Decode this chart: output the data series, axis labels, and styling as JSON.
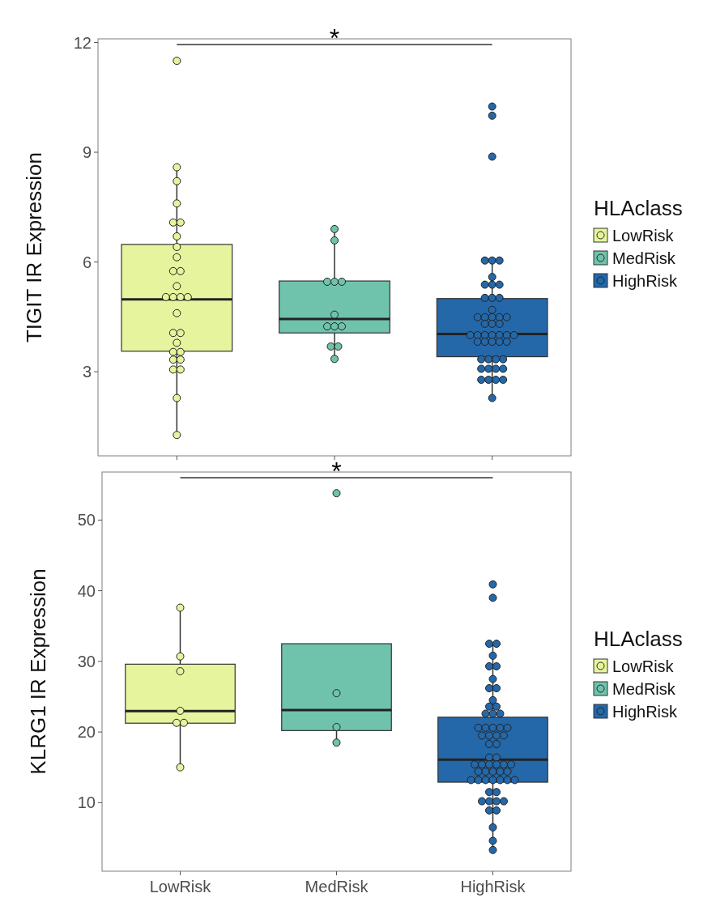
{
  "chart_data": [
    {
      "type": "box",
      "ylabel": "TIGIT IR Expression",
      "legend_title": "HLAclass",
      "categories": [
        "LowRisk",
        "MedRisk",
        "HighRisk"
      ],
      "colors": [
        "#e6f59d",
        "#6fc3ad",
        "#2468a9"
      ],
      "ylim": [
        0.7,
        12.1
      ],
      "yticks": [
        3,
        6,
        9,
        12
      ],
      "tick_labels": "y",
      "legend": "right",
      "annotations": [
        "*"
      ],
      "boxes": [
        {
          "low": 1.27,
          "q1": 3.56,
          "median": 4.98,
          "q3": 6.48,
          "high": 8.59
        },
        {
          "low": 3.35,
          "q1": 4.06,
          "median": 4.44,
          "q3": 5.48,
          "high": 6.9
        },
        {
          "low": 2.28,
          "q1": 3.41,
          "median": 4.03,
          "q3": 5.0,
          "high": 6.04
        }
      ],
      "series": [
        {
          "type": "scatter",
          "name": "LowRisk",
          "color": "#e6f59d",
          "x": [
            "LowRisk",
            "LowRisk",
            "LowRisk",
            "LowRisk",
            "LowRisk",
            "LowRisk",
            "LowRisk",
            "LowRisk",
            "LowRisk",
            "LowRisk",
            "LowRisk",
            "LowRisk",
            "LowRisk",
            "LowRisk",
            "LowRisk",
            "LowRisk",
            "LowRisk",
            "LowRisk",
            "LowRisk",
            "LowRisk",
            "LowRisk",
            "LowRisk",
            "LowRisk",
            "LowRisk",
            "LowRisk",
            "LowRisk",
            "LowRisk",
            "LowRisk"
          ],
          "values": [
            11.5,
            8.59,
            8.21,
            7.6,
            7.08,
            7.08,
            6.7,
            6.41,
            6.13,
            5.75,
            5.75,
            5.34,
            5.04,
            5.04,
            5.04,
            5.04,
            4.6,
            4.06,
            4.06,
            3.79,
            3.54,
            3.54,
            3.33,
            3.33,
            3.06,
            3.06,
            2.28,
            1.27
          ]
        },
        {
          "type": "scatter",
          "name": "MedRisk",
          "color": "#6fc3ad",
          "x": [
            "MedRisk",
            "MedRisk",
            "MedRisk",
            "MedRisk",
            "MedRisk",
            "MedRisk",
            "MedRisk",
            "MedRisk",
            "MedRisk",
            "MedRisk",
            "MedRisk",
            "MedRisk"
          ],
          "values": [
            6.9,
            6.59,
            5.46,
            5.46,
            5.46,
            4.56,
            4.24,
            4.24,
            4.24,
            3.69,
            3.69,
            3.35
          ]
        },
        {
          "type": "scatter",
          "name": "HighRisk",
          "color": "#2468a9",
          "x": [
            "HighRisk",
            "HighRisk",
            "HighRisk",
            "HighRisk",
            "HighRisk",
            "HighRisk",
            "HighRisk",
            "HighRisk",
            "HighRisk",
            "HighRisk",
            "HighRisk",
            "HighRisk",
            "HighRisk",
            "HighRisk",
            "HighRisk",
            "HighRisk",
            "HighRisk",
            "HighRisk",
            "HighRisk",
            "HighRisk",
            "HighRisk",
            "HighRisk",
            "HighRisk",
            "HighRisk",
            "HighRisk",
            "HighRisk",
            "HighRisk",
            "HighRisk",
            "HighRisk",
            "HighRisk",
            "HighRisk",
            "HighRisk",
            "HighRisk",
            "HighRisk",
            "HighRisk",
            "HighRisk",
            "HighRisk",
            "HighRisk",
            "HighRisk",
            "HighRisk",
            "HighRisk",
            "HighRisk",
            "HighRisk",
            "HighRisk",
            "HighRisk",
            "HighRisk",
            "HighRisk"
          ],
          "values": [
            10.25,
            10.0,
            8.88,
            6.04,
            6.04,
            6.04,
            5.59,
            5.38,
            5.38,
            5.38,
            5.02,
            5.02,
            5.02,
            4.69,
            4.49,
            4.49,
            4.49,
            4.49,
            4.49,
            4.31,
            4.31,
            4.31,
            4.0,
            4.0,
            4.0,
            4.0,
            4.0,
            4.0,
            4.0,
            3.82,
            3.82,
            3.82,
            3.82,
            3.82,
            3.34,
            3.34,
            3.34,
            3.34,
            3.08,
            3.08,
            3.08,
            3.08,
            2.78,
            2.78,
            2.78,
            2.78,
            2.28
          ]
        }
      ]
    },
    {
      "type": "box",
      "ylabel": "KLRG1 IR Expression",
      "legend_title": "HLAclass",
      "categories": [
        "LowRisk",
        "MedRisk",
        "HighRisk"
      ],
      "colors": [
        "#e6f59d",
        "#6fc3ad",
        "#2468a9"
      ],
      "ylim": [
        0.3,
        56.8
      ],
      "yticks": [
        10,
        20,
        30,
        40,
        50
      ],
      "legend": "right",
      "annotations": [
        "*"
      ],
      "boxes": [
        {
          "low": 15.0,
          "q1": 21.25,
          "median": 22.95,
          "q3": 29.6,
          "high": 37.6
        },
        {
          "low": 18.5,
          "q1": 20.2,
          "median": 23.1,
          "q3": 32.5,
          "high": 32.5
        },
        {
          "low": 3.3,
          "q1": 12.9,
          "median": 16.1,
          "q3": 22.1,
          "high": 32.5
        }
      ],
      "series": [
        {
          "type": "scatter",
          "name": "LowRisk",
          "color": "#e6f59d",
          "x": [
            "LowRisk",
            "LowRisk",
            "LowRisk",
            "LowRisk",
            "LowRisk",
            "LowRisk",
            "LowRisk"
          ],
          "values": [
            37.6,
            30.7,
            28.6,
            23.0,
            21.3,
            21.3,
            15.0
          ]
        },
        {
          "type": "scatter",
          "name": "MedRisk",
          "color": "#6fc3ad",
          "x": [
            "MedRisk",
            "MedRisk",
            "MedRisk",
            "MedRisk"
          ],
          "values": [
            53.8,
            25.5,
            20.7,
            18.5
          ]
        },
        {
          "type": "scatter",
          "name": "HighRisk",
          "color": "#2468a9",
          "x": [
            "HighRisk",
            "HighRisk",
            "HighRisk",
            "HighRisk",
            "HighRisk",
            "HighRisk",
            "HighRisk",
            "HighRisk",
            "HighRisk",
            "HighRisk",
            "HighRisk",
            "HighRisk",
            "HighRisk",
            "HighRisk",
            "HighRisk",
            "HighRisk",
            "HighRisk",
            "HighRisk",
            "HighRisk",
            "HighRisk",
            "HighRisk",
            "HighRisk",
            "HighRisk",
            "HighRisk",
            "HighRisk",
            "HighRisk",
            "HighRisk",
            "HighRisk",
            "HighRisk",
            "HighRisk",
            "HighRisk",
            "HighRisk",
            "HighRisk",
            "HighRisk",
            "HighRisk",
            "HighRisk",
            "HighRisk",
            "HighRisk",
            "HighRisk",
            "HighRisk",
            "HighRisk",
            "HighRisk",
            "HighRisk",
            "HighRisk",
            "HighRisk",
            "HighRisk",
            "HighRisk",
            "HighRisk",
            "HighRisk",
            "HighRisk",
            "HighRisk",
            "HighRisk",
            "HighRisk",
            "HighRisk",
            "HighRisk",
            "HighRisk",
            "HighRisk",
            "HighRisk"
          ],
          "values": [
            40.9,
            39.0,
            32.5,
            32.5,
            30.8,
            29.3,
            29.3,
            27.5,
            26.2,
            26.2,
            24.5,
            23.6,
            23.6,
            22.6,
            22.6,
            22.6,
            20.6,
            20.6,
            20.6,
            20.6,
            20.6,
            19.5,
            19.5,
            19.5,
            19.5,
            18.3,
            18.3,
            16.4,
            16.4,
            15.4,
            15.4,
            15.4,
            15.4,
            15.4,
            15.4,
            14.4,
            14.4,
            14.4,
            14.4,
            14.4,
            13.2,
            13.2,
            13.2,
            13.2,
            13.2,
            13.2,
            13.2,
            11.5,
            11.5,
            10.2,
            10.2,
            10.2,
            10.2,
            8.9,
            8.9,
            6.5,
            4.6,
            3.3
          ]
        }
      ]
    }
  ]
}
